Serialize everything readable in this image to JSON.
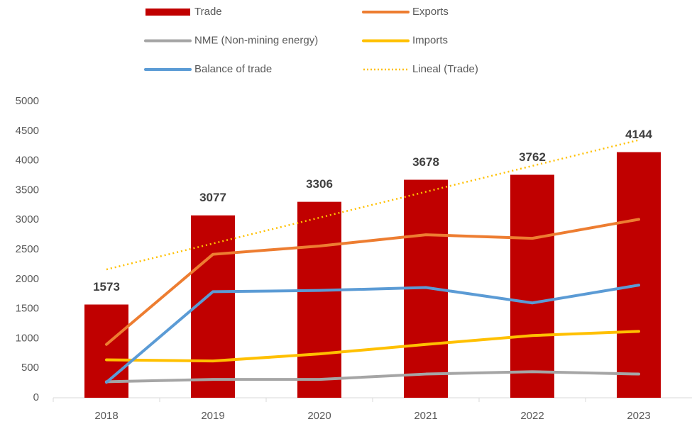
{
  "chart_data": {
    "type": "bar",
    "categories": [
      "2018",
      "2019",
      "2020",
      "2021",
      "2022",
      "2023"
    ],
    "series": [
      {
        "name": "Trade",
        "type": "bar",
        "color": "#c00000",
        "values": [
          1573,
          3077,
          3306,
          3678,
          3762,
          4144
        ]
      },
      {
        "name": "Exports",
        "type": "line",
        "color": "#ed7d31",
        "values": [
          900,
          2420,
          2560,
          2750,
          2690,
          3010
        ]
      },
      {
        "name": "NME (Non-mining energy)",
        "type": "line",
        "color": "#a5a5a5",
        "values": [
          270,
          310,
          310,
          400,
          440,
          400
        ]
      },
      {
        "name": "Imports",
        "type": "line",
        "color": "#ffc000",
        "values": [
          640,
          620,
          740,
          900,
          1050,
          1120
        ]
      },
      {
        "name": "Balance of trade",
        "type": "line",
        "color": "#5b9bd5",
        "values": [
          260,
          1790,
          1810,
          1860,
          1600,
          1900
        ]
      },
      {
        "name": "Lineal (Trade)",
        "type": "line",
        "dash": "dotted",
        "color": "#ffc000",
        "values": [
          2165,
          2602,
          3038,
          3475,
          3912,
          4348
        ]
      }
    ],
    "ylim": [
      0,
      5000
    ],
    "yticks": [
      0,
      500,
      1000,
      1500,
      2000,
      2500,
      3000,
      3500,
      4000,
      4500,
      5000
    ],
    "grid": false,
    "legend": "top"
  }
}
